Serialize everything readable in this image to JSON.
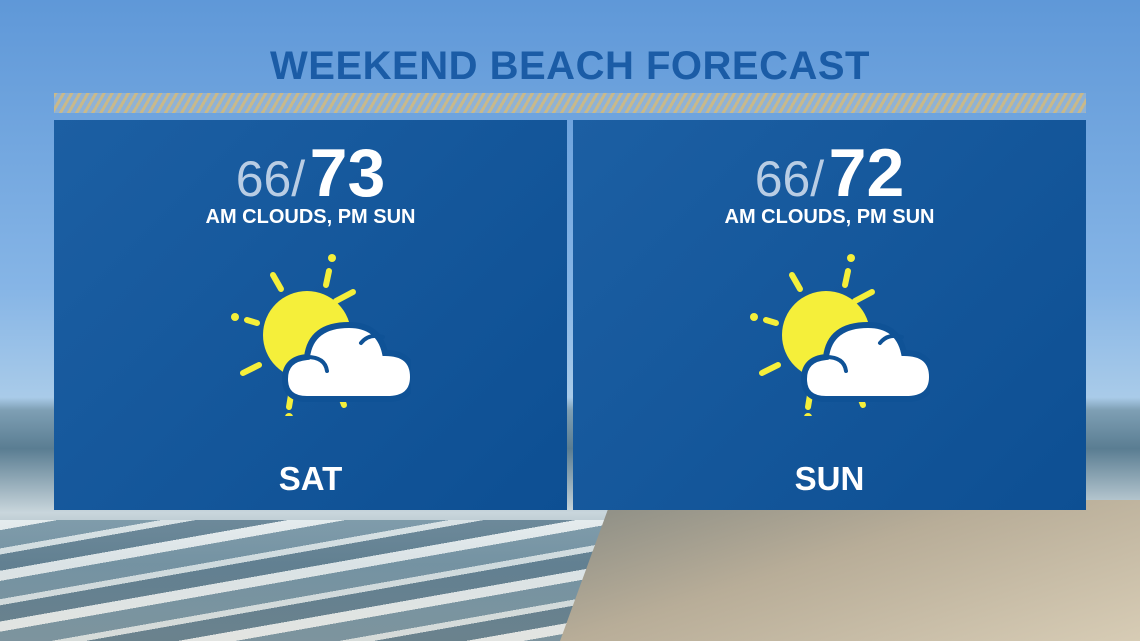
{
  "title": "WEEKEND BEACH FORECAST",
  "colors": {
    "panel": "#0f5296",
    "title": "#1b5ca6",
    "sun": "#f5ef3a",
    "cloud": "#ffffff"
  },
  "days": [
    {
      "day": "SAT",
      "low": "66/",
      "high": "73",
      "condition": "AM CLOUDS, PM SUN",
      "icon": "partly-sunny-icon"
    },
    {
      "day": "SUN",
      "low": "66/",
      "high": "72",
      "condition": "AM CLOUDS, PM SUN",
      "icon": "partly-sunny-icon"
    }
  ]
}
